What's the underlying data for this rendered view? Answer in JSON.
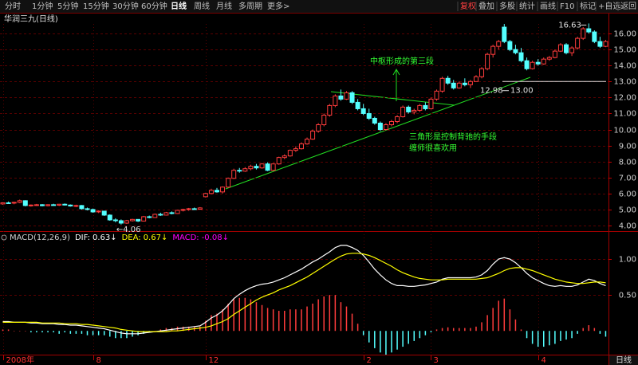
{
  "toolbar": {
    "left": [
      "分时",
      "1分钟",
      "5分钟",
      "15分钟",
      "30分钟",
      "60分钟",
      "日线",
      "周线",
      "月线",
      "多周期",
      "更多>"
    ],
    "right": [
      "复权",
      "叠加",
      "多股",
      "统计",
      "画线",
      "F10",
      "标记",
      "+自选",
      "返回"
    ],
    "active": 6
  },
  "stock_title": "华润三九(日线)",
  "period_label": "日线",
  "chart_data": [
    {
      "type": "candlestick",
      "up_color": "#ff3c3c",
      "down_color": "#54ffff",
      "grid": true,
      "ylim": [
        3.65,
        17.2
      ],
      "yticks": [
        {
          "value": 4,
          "label": "4.00"
        },
        {
          "value": 5,
          "label": "5.00"
        },
        {
          "value": 6,
          "label": "6.00"
        },
        {
          "value": 7,
          "label": "7.00"
        },
        {
          "value": 8,
          "label": "8.00"
        },
        {
          "value": 9,
          "label": "9.00"
        },
        {
          "value": 10,
          "label": "10.00"
        },
        {
          "value": 11,
          "label": "11.00"
        },
        {
          "value": 12,
          "label": "12.00"
        },
        {
          "value": 13,
          "label": "13.00"
        },
        {
          "value": 14,
          "label": "14.00"
        },
        {
          "value": 15,
          "label": "15.00"
        },
        {
          "value": 16,
          "label": "16.00"
        }
      ],
      "categories": [
        "2008年",
        null,
        null,
        null,
        null,
        null,
        null,
        null,
        null,
        null,
        null,
        null,
        null,
        null,
        null,
        null,
        "8",
        null,
        null,
        null,
        null,
        null,
        null,
        null,
        null,
        null,
        null,
        null,
        null,
        null,
        null,
        null,
        null,
        null,
        null,
        null,
        "12",
        null,
        null,
        null,
        null,
        null,
        null,
        null,
        null,
        null,
        null,
        null,
        null,
        null,
        null,
        null,
        null,
        null,
        null,
        null,
        null,
        null,
        null,
        null,
        null,
        null,
        null,
        null,
        "2",
        null,
        null,
        null,
        null,
        null,
        null,
        null,
        null,
        null,
        null,
        null,
        "3",
        null,
        null,
        null,
        null,
        null,
        null,
        null,
        null,
        null,
        null,
        null,
        null,
        null,
        null,
        null,
        null,
        null,
        null,
        "4",
        null,
        null,
        null,
        null,
        null,
        null,
        null,
        null,
        null,
        null,
        null,
        null
      ],
      "open": [
        5.35,
        5.42,
        5.4,
        5.45,
        5.55,
        5.25,
        5.28,
        5.3,
        5.24,
        5.3,
        5.27,
        5.33,
        5.28,
        5.22,
        5.25,
        5.05,
        5.0,
        4.85,
        4.9,
        4.65,
        4.35,
        4.3,
        4.15,
        4.3,
        4.38,
        4.28,
        4.55,
        4.5,
        4.7,
        4.65,
        4.8,
        4.75,
        4.95,
        5.0,
        5.05,
        5.02,
        5.8,
        6.0,
        6.2,
        6.1,
        6.4,
        6.95,
        7.45,
        7.4,
        7.55,
        7.7,
        7.6,
        7.85,
        7.45,
        7.85,
        8.25,
        8.35,
        8.7,
        8.8,
        9.1,
        9.4,
        9.9,
        10.3,
        10.9,
        11.5,
        12.1,
        11.9,
        12.3,
        11.7,
        11.3,
        11.0,
        10.7,
        10.4,
        10.0,
        10.3,
        10.5,
        10.8,
        11.4,
        11.1,
        11.2,
        11.5,
        11.3,
        11.9,
        12.4,
        13.2,
        12.9,
        12.6,
        12.9,
        12.8,
        13.0,
        13.3,
        13.8,
        14.7,
        15.2,
        16.4,
        15.5,
        15.0,
        14.8,
        14.3,
        13.8,
        14.2,
        14.1,
        14.4,
        14.5,
        14.9,
        15.3,
        14.8,
        15.1,
        15.7,
        16.3,
        16.1,
        15.5,
        15.2
      ],
      "high": [
        5.45,
        5.5,
        5.48,
        5.62,
        5.58,
        5.32,
        5.35,
        5.34,
        5.33,
        5.36,
        5.35,
        5.38,
        5.32,
        5.3,
        5.28,
        5.12,
        5.06,
        4.95,
        4.92,
        4.7,
        4.45,
        4.38,
        4.35,
        4.42,
        4.4,
        4.6,
        4.62,
        4.75,
        4.8,
        4.85,
        4.88,
        4.98,
        5.05,
        5.1,
        5.12,
        5.15,
        6.05,
        6.3,
        6.35,
        6.45,
        7.0,
        7.55,
        7.6,
        7.65,
        7.8,
        7.85,
        7.9,
        7.95,
        7.9,
        8.3,
        8.45,
        8.75,
        8.95,
        9.2,
        9.5,
        10.0,
        10.4,
        11.0,
        11.6,
        12.2,
        12.5,
        12.4,
        12.4,
        11.9,
        11.6,
        11.3,
        10.8,
        10.5,
        10.4,
        10.6,
        10.9,
        11.5,
        11.5,
        11.3,
        11.6,
        11.7,
        12.0,
        12.5,
        13.3,
        13.35,
        13.1,
        13.0,
        13.2,
        13.1,
        13.4,
        13.9,
        14.8,
        15.3,
        15.6,
        16.6,
        15.6,
        15.3,
        15.1,
        14.5,
        14.3,
        14.4,
        14.5,
        14.6,
        15.0,
        15.4,
        15.4,
        15.2,
        15.8,
        16.4,
        16.63,
        16.2,
        15.8,
        15.6
      ],
      "low": [
        5.3,
        5.36,
        5.33,
        5.4,
        5.2,
        5.18,
        5.22,
        5.2,
        5.2,
        5.24,
        5.22,
        5.25,
        5.18,
        5.15,
        5.0,
        4.95,
        4.8,
        4.78,
        4.6,
        4.3,
        4.2,
        4.06,
        4.1,
        4.25,
        4.22,
        4.25,
        4.45,
        4.48,
        4.6,
        4.62,
        4.7,
        4.72,
        4.88,
        4.92,
        4.98,
        4.98,
        5.75,
        5.95,
        6.05,
        6.0,
        6.35,
        6.9,
        7.3,
        7.35,
        7.45,
        7.5,
        7.55,
        7.4,
        7.4,
        7.8,
        8.15,
        8.3,
        8.6,
        8.75,
        9.05,
        9.35,
        9.8,
        10.2,
        10.8,
        11.4,
        11.8,
        11.85,
        11.6,
        11.2,
        10.9,
        10.6,
        10.3,
        9.9,
        9.95,
        10.2,
        10.4,
        10.75,
        11.0,
        10.95,
        11.1,
        11.2,
        11.25,
        11.8,
        12.3,
        12.8,
        12.5,
        12.55,
        12.7,
        12.6,
        12.98,
        13.2,
        13.7,
        14.5,
        15.0,
        15.4,
        14.9,
        14.7,
        14.2,
        13.7,
        13.75,
        14.0,
        14.05,
        14.3,
        14.45,
        14.85,
        14.7,
        14.6,
        15.0,
        15.6,
        16.0,
        15.4,
        15.1,
        15.15
      ],
      "close": [
        5.42,
        5.4,
        5.45,
        5.55,
        5.25,
        5.28,
        5.3,
        5.24,
        5.3,
        5.27,
        5.33,
        5.28,
        5.22,
        5.25,
        5.05,
        5.0,
        4.85,
        4.9,
        4.65,
        4.35,
        4.3,
        4.15,
        4.3,
        4.38,
        4.28,
        4.55,
        4.5,
        4.7,
        4.65,
        4.8,
        4.75,
        4.95,
        5.0,
        5.05,
        5.02,
        5.1,
        6.0,
        6.2,
        6.1,
        6.4,
        6.95,
        7.45,
        7.4,
        7.55,
        7.7,
        7.6,
        7.85,
        7.45,
        7.85,
        8.25,
        8.35,
        8.7,
        8.8,
        9.1,
        9.4,
        9.9,
        10.3,
        10.9,
        11.5,
        12.1,
        11.9,
        12.3,
        11.7,
        11.3,
        11.0,
        10.7,
        10.4,
        10.0,
        10.3,
        10.5,
        10.8,
        11.4,
        11.1,
        11.2,
        11.5,
        11.3,
        11.9,
        12.4,
        13.2,
        12.9,
        12.6,
        12.9,
        12.8,
        13.0,
        13.3,
        13.8,
        14.7,
        15.2,
        15.5,
        15.5,
        15.0,
        14.8,
        14.3,
        13.8,
        14.2,
        14.1,
        14.4,
        14.5,
        14.9,
        15.3,
        14.8,
        15.1,
        15.7,
        16.3,
        16.1,
        15.5,
        15.2,
        15.5
      ],
      "price_marks": [
        {
          "value": 4.06,
          "label": "←4.06"
        },
        16.63,
        12.98,
        {
          "value": 13,
          "label": "13.00"
        }
      ],
      "annotations": [
        "中枢形成的第三段",
        "三角形是控制背驰的手段",
        "缠师很喜欢用"
      ]
    },
    {
      "type": "macd",
      "title": "MACD(12,26,9)",
      "ylim": [
        -0.33,
        1.3
      ],
      "grid": true,
      "yticks": [
        {
          "value": 0.5,
          "label": "0.50"
        },
        {
          "value": 1,
          "label": "1.00"
        }
      ],
      "series": [
        {
          "name": "DIF:",
          "color": "#ffffff",
          "last": 0.63,
          "arrow": "↓",
          "values": [
            0.13,
            0.13,
            0.12,
            0.12,
            0.12,
            0.11,
            0.11,
            0.1,
            0.1,
            0.1,
            0.09,
            0.09,
            0.08,
            0.08,
            0.07,
            0.06,
            0.05,
            0.04,
            0.03,
            0.01,
            -0.01,
            -0.03,
            -0.04,
            -0.04,
            -0.04,
            -0.03,
            -0.02,
            -0.01,
            0.0,
            0.01,
            0.02,
            0.03,
            0.04,
            0.05,
            0.06,
            0.07,
            0.12,
            0.18,
            0.22,
            0.28,
            0.36,
            0.45,
            0.51,
            0.56,
            0.6,
            0.63,
            0.65,
            0.66,
            0.68,
            0.71,
            0.74,
            0.78,
            0.82,
            0.86,
            0.91,
            0.96,
            1.0,
            1.05,
            1.1,
            1.16,
            1.19,
            1.19,
            1.16,
            1.12,
            1.05,
            0.96,
            0.86,
            0.78,
            0.71,
            0.66,
            0.63,
            0.63,
            0.62,
            0.62,
            0.63,
            0.64,
            0.66,
            0.68,
            0.72,
            0.74,
            0.74,
            0.74,
            0.74,
            0.74,
            0.75,
            0.78,
            0.84,
            0.93,
            1.0,
            1.02,
            1.0,
            0.95,
            0.88,
            0.8,
            0.74,
            0.7,
            0.66,
            0.63,
            0.62,
            0.63,
            0.62,
            0.62,
            0.64,
            0.68,
            0.72,
            0.7,
            0.66,
            0.63
          ]
        },
        {
          "name": "DEA:",
          "color": "#ffff00",
          "last": 0.67,
          "arrow": "↓",
          "values": [
            0.12,
            0.12,
            0.12,
            0.12,
            0.12,
            0.12,
            0.12,
            0.11,
            0.11,
            0.11,
            0.11,
            0.1,
            0.1,
            0.1,
            0.09,
            0.09,
            0.08,
            0.07,
            0.06,
            0.05,
            0.04,
            0.02,
            0.01,
            0.0,
            -0.01,
            -0.01,
            -0.01,
            -0.01,
            -0.01,
            -0.01,
            0.0,
            0.0,
            0.01,
            0.02,
            0.03,
            0.04,
            0.05,
            0.07,
            0.1,
            0.13,
            0.17,
            0.23,
            0.28,
            0.33,
            0.38,
            0.43,
            0.47,
            0.5,
            0.53,
            0.57,
            0.6,
            0.63,
            0.67,
            0.71,
            0.75,
            0.8,
            0.85,
            0.9,
            0.95,
            1.0,
            1.04,
            1.07,
            1.08,
            1.08,
            1.07,
            1.05,
            1.02,
            0.98,
            0.94,
            0.9,
            0.85,
            0.81,
            0.78,
            0.75,
            0.73,
            0.72,
            0.71,
            0.71,
            0.71,
            0.72,
            0.72,
            0.72,
            0.72,
            0.72,
            0.72,
            0.73,
            0.74,
            0.77,
            0.8,
            0.84,
            0.87,
            0.88,
            0.88,
            0.86,
            0.84,
            0.81,
            0.78,
            0.75,
            0.72,
            0.7,
            0.68,
            0.67,
            0.66,
            0.66,
            0.67,
            0.68,
            0.68,
            0.67
          ]
        },
        {
          "name": "MACD:",
          "color": "#ff00ff",
          "last": -0.08,
          "arrow": "↓",
          "up_color": "#ff3c3c",
          "down_color": "#54ffff",
          "values": [
            0.02,
            0.02,
            0,
            0,
            0,
            -0.02,
            -0.02,
            -0.02,
            -0.02,
            -0.02,
            -0.04,
            -0.02,
            -0.04,
            -0.04,
            -0.04,
            -0.06,
            -0.06,
            -0.06,
            -0.06,
            -0.08,
            -0.1,
            -0.1,
            -0.1,
            -0.08,
            -0.06,
            -0.04,
            -0.02,
            0,
            0.02,
            0.04,
            0.04,
            0.06,
            0.06,
            0.06,
            0.06,
            0.06,
            0.14,
            0.22,
            0.24,
            0.3,
            0.38,
            0.44,
            0.46,
            0.46,
            0.44,
            0.4,
            0.36,
            0.32,
            0.3,
            0.28,
            0.28,
            0.3,
            0.3,
            0.3,
            0.34,
            0.38,
            0.44,
            0.48,
            0.5,
            0.5,
            0.4,
            0.34,
            0.24,
            0.1,
            -0.06,
            -0.16,
            -0.24,
            -0.3,
            -0.33,
            -0.3,
            -0.26,
            -0.22,
            -0.18,
            -0.14,
            -0.1,
            -0.06,
            -0.02,
            0.02,
            0.04,
            0.05,
            0.04,
            0.04,
            0.04,
            0.04,
            0.06,
            0.12,
            0.22,
            0.32,
            0.42,
            0.45,
            0.3,
            0.16,
            0.02,
            -0.1,
            -0.18,
            -0.22,
            -0.22,
            -0.2,
            -0.18,
            -0.14,
            -0.12,
            -0.1,
            -0.04,
            0.04,
            0.08,
            0.04,
            -0.04,
            -0.08
          ]
        }
      ]
    }
  ]
}
